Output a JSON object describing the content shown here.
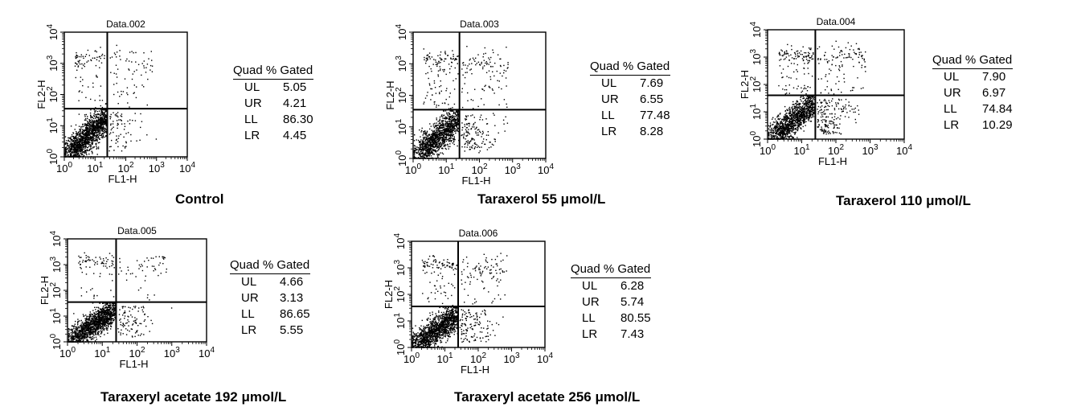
{
  "chart_data": [
    {
      "type": "scatter",
      "title": "Data.002",
      "xlabel": "FL1-H",
      "ylabel": "FL2-H",
      "x_scale": "log",
      "y_scale": "log",
      "xlim": [
        1,
        10000
      ],
      "ylim": [
        1,
        10000
      ],
      "x_ticks": [
        "10^0",
        "10^1",
        "10^2",
        "10^3",
        "10^4"
      ],
      "y_ticks": [
        "10^0",
        "10^1",
        "10^2",
        "10^3",
        "10^4"
      ],
      "quadrant_gate": {
        "x": 25,
        "y": 35
      },
      "table_header": "Quad % Gated",
      "quadrants": [
        {
          "quad": "UL",
          "value": "5.05"
        },
        {
          "quad": "UR",
          "value": "4.21"
        },
        {
          "quad": "LL",
          "value": "86.30"
        },
        {
          "quad": "LR",
          "value": "4.45"
        }
      ],
      "caption": "Control"
    },
    {
      "type": "scatter",
      "title": "Data.003",
      "xlabel": "FL1-H",
      "ylabel": "FL2-H",
      "x_scale": "log",
      "y_scale": "log",
      "xlim": [
        1,
        10000
      ],
      "ylim": [
        1,
        10000
      ],
      "x_ticks": [
        "10^0",
        "10^1",
        "10^2",
        "10^3",
        "10^4"
      ],
      "y_ticks": [
        "10^0",
        "10^1",
        "10^2",
        "10^3",
        "10^4"
      ],
      "quadrant_gate": {
        "x": 25,
        "y": 35
      },
      "table_header": "Quad % Gated",
      "quadrants": [
        {
          "quad": "UL",
          "value": "7.69"
        },
        {
          "quad": "UR",
          "value": "6.55"
        },
        {
          "quad": "LL",
          "value": "77.48"
        },
        {
          "quad": "LR",
          "value": "8.28"
        }
      ],
      "caption": "Taraxerol 55 μmol/L"
    },
    {
      "type": "scatter",
      "title": "Data.004",
      "xlabel": "FL1-H",
      "ylabel": "FL2-H",
      "x_scale": "log",
      "y_scale": "log",
      "xlim": [
        1,
        10000
      ],
      "ylim": [
        1,
        10000
      ],
      "x_ticks": [
        "10^0",
        "10^1",
        "10^2",
        "10^3",
        "10^4"
      ],
      "y_ticks": [
        "10^0",
        "10^1",
        "10^2",
        "10^3",
        "10^4"
      ],
      "quadrant_gate": {
        "x": 25,
        "y": 40
      },
      "table_header": "Quad % Gated",
      "quadrants": [
        {
          "quad": "UL",
          "value": "7.90"
        },
        {
          "quad": "UR",
          "value": "6.97"
        },
        {
          "quad": "LL",
          "value": "74.84"
        },
        {
          "quad": "LR",
          "value": "10.29"
        }
      ],
      "caption": "Taraxerol 110 μmol/L"
    },
    {
      "type": "scatter",
      "title": "Data.005",
      "xlabel": "FL1-H",
      "ylabel": "FL2-H",
      "x_scale": "log",
      "y_scale": "log",
      "xlim": [
        1,
        10000
      ],
      "ylim": [
        1,
        10000
      ],
      "x_ticks": [
        "10^0",
        "10^1",
        "10^2",
        "10^3",
        "10^4"
      ],
      "y_ticks": [
        "10^0",
        "10^1",
        "10^2",
        "10^3",
        "10^4"
      ],
      "quadrant_gate": {
        "x": 25,
        "y": 35
      },
      "table_header": "Quad % Gated",
      "quadrants": [
        {
          "quad": "UL",
          "value": "4.66"
        },
        {
          "quad": "UR",
          "value": "3.13"
        },
        {
          "quad": "LL",
          "value": "86.65"
        },
        {
          "quad": "LR",
          "value": "5.55"
        }
      ],
      "caption": "Taraxeryl acetate 192 μmol/L"
    },
    {
      "type": "scatter",
      "title": "Data.006",
      "xlabel": "FL1-H",
      "ylabel": "FL2-H",
      "x_scale": "log",
      "y_scale": "log",
      "xlim": [
        1,
        10000
      ],
      "ylim": [
        1,
        10000
      ],
      "x_ticks": [
        "10^0",
        "10^1",
        "10^2",
        "10^3",
        "10^4"
      ],
      "y_ticks": [
        "10^0",
        "10^1",
        "10^2",
        "10^3",
        "10^4"
      ],
      "quadrant_gate": {
        "x": 25,
        "y": 35
      },
      "table_header": "Quad % Gated",
      "quadrants": [
        {
          "quad": "UL",
          "value": "6.28"
        },
        {
          "quad": "UR",
          "value": "5.74"
        },
        {
          "quad": "LL",
          "value": "80.55"
        },
        {
          "quad": "LR",
          "value": "7.43"
        }
      ],
      "caption": "Taraxeryl acetate 256 μmol/L"
    }
  ]
}
